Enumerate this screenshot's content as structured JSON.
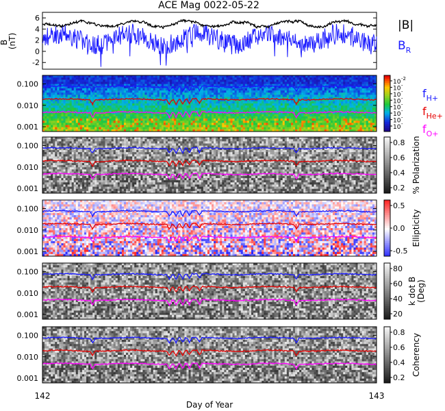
{
  "title": "ACE Mag 0022-05-22",
  "x_axis": {
    "label": "Day of Year",
    "ticks": [
      "142",
      "143"
    ]
  },
  "mag_panel": {
    "ylabel": "B\n(nT)",
    "yticks": [
      "6",
      "4",
      "2",
      "0",
      "-2"
    ],
    "legend_b": "|B|",
    "legend_br": "B",
    "legend_br_sub": "R",
    "color_b": "#000000",
    "color_br": "#1a1aff"
  },
  "freq_yticks": [
    "0.100",
    "0.010",
    "0.001"
  ],
  "line_colors": {
    "h": "#1a1aff",
    "he": "#e60000",
    "o": "#ff00ff"
  },
  "panels": [
    {
      "id": "power",
      "colorbar_ticks": [
        "10",
        "10",
        "10",
        "10",
        "10",
        "10",
        "10",
        "10"
      ],
      "colorbar_sups": [
        "-2",
        "-",
        "-",
        "-",
        "-",
        "-",
        "-",
        "-"
      ],
      "colorbar_label": "",
      "legend": [
        {
          "text": "f",
          "sub": "H+",
          "color": "#1a1aff"
        },
        {
          "text": "f",
          "sub": "He+",
          "color": "#e60000"
        },
        {
          "text": "f",
          "sub": "O+",
          "color": "#ff00ff"
        }
      ]
    },
    {
      "id": "polarization",
      "colorbar_ticks": [
        "0.8",
        "0.6",
        "0.4",
        "0.2"
      ],
      "colorbar_label": "% Polarization"
    },
    {
      "id": "ellipticity",
      "colorbar_ticks": [
        "0.5",
        "0.0",
        "-0.5"
      ],
      "colorbar_label": "Ellipticity"
    },
    {
      "id": "kdotb",
      "colorbar_ticks": [
        "80",
        "60",
        "40",
        "20"
      ],
      "colorbar_label": "k dot B\n(Deg)"
    },
    {
      "id": "coherency",
      "colorbar_ticks": [
        "0.8",
        "0.6",
        "0.4",
        "0.2"
      ],
      "colorbar_label": "Coherency"
    }
  ],
  "chart_data": {
    "type": "line",
    "title": "ACE Mag 0022-05-22",
    "xlabel": "Day of Year",
    "xlim": [
      142,
      143
    ],
    "mag": {
      "ylim": [
        -3.2,
        7
      ],
      "series": [
        {
          "name": "|B|",
          "mean": 4.9,
          "noise": 0.35
        },
        {
          "name": "B_R",
          "mean": 2.2,
          "noise": 1.8
        }
      ]
    },
    "frequency_lines": {
      "yscale": "log",
      "ylim": [
        0.0006,
        0.25
      ],
      "series": [
        {
          "name": "f_H+",
          "values": 0.075
        },
        {
          "name": "f_He+",
          "values": 0.019
        },
        {
          "name": "f_O+",
          "values": 0.0047
        }
      ],
      "dips_day": [
        142.15,
        142.38,
        142.4,
        142.42,
        142.44,
        142.47,
        142.76
      ]
    },
    "colorbar_ranges": {
      "polarization": [
        0,
        1
      ],
      "ellipticity": [
        -1,
        1
      ],
      "kdotb": [
        0,
        90
      ],
      "coherency": [
        0,
        1
      ]
    }
  }
}
